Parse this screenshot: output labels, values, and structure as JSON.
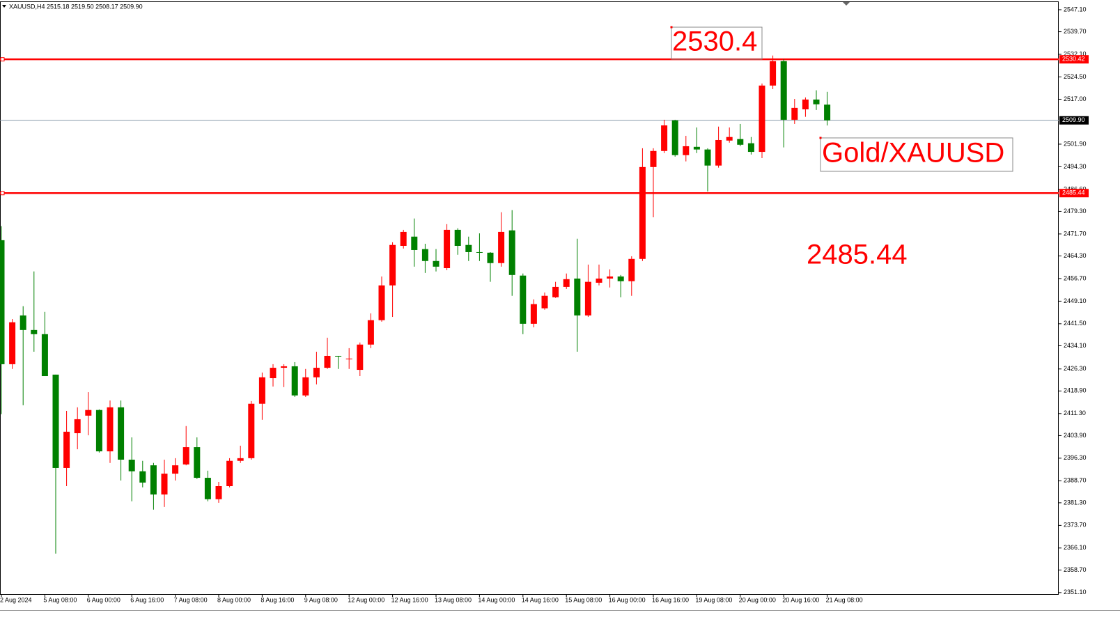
{
  "chart_data": {
    "type": "candlestick",
    "header": "XAUUSD,H4  2515.18 2519.50 2508.17 2509.90",
    "categories": [
      "2 Aug 2024",
      null,
      null,
      null,
      "5 Aug 08:00",
      null,
      null,
      null,
      "6 Aug 00:00",
      null,
      null,
      null,
      "6 Aug 16:00",
      null,
      null,
      null,
      "7 Aug 08:00",
      null,
      null,
      null,
      "8 Aug 00:00",
      null,
      null,
      null,
      "8 Aug 16:00",
      null,
      null,
      null,
      "9 Aug 08:00",
      null,
      null,
      null,
      "12 Aug 00:00",
      null,
      null,
      null,
      "12 Aug 16:00",
      null,
      null,
      null,
      "13 Aug 08:00",
      null,
      null,
      null,
      "14 Aug 00:00",
      null,
      null,
      null,
      "14 Aug 16:00",
      null,
      null,
      null,
      "15 Aug 08:00",
      null,
      null,
      null,
      "16 Aug 00:00",
      null,
      null,
      null,
      "16 Aug 16:00",
      null,
      null,
      null,
      "19 Aug 08:00",
      null,
      null,
      null,
      "20 Aug 00:00",
      null,
      null,
      null,
      "20 Aug 16:00",
      null,
      null,
      null,
      "21 Aug 08:00"
    ],
    "open": [
      2469.6,
      2427.9,
      2444.3,
      2439.4,
      2438.0,
      2424.4,
      2393.0,
      2404.7,
      2410.6,
      2412.5,
      2398.6,
      2413.4,
      2395.8,
      2391.9,
      2393.9,
      2384.1,
      2391.1,
      2394.2,
      2400.0,
      2389.7,
      2382.5,
      2386.9,
      2395.4,
      2396.3,
      2414.6,
      2423.2,
      2426.7,
      2427.2,
      2417.4,
      2423.5,
      2426.7,
      2430.7,
      2429.6,
      2426.0,
      2434.5,
      2442.7,
      2454.4,
      2467.7,
      2470.8,
      2466.6,
      2462.6,
      2460.2,
      2473.1,
      2468.0,
      2465.6,
      2465.4,
      2461.9,
      2472.9,
      2457.7,
      2441.5,
      2446.7,
      2450.4,
      2453.9,
      2456.7,
      2444.3,
      2455.3,
      2456.7,
      2457.4,
      2455.8,
      2463.3,
      2494.2,
      2499.6,
      2509.9,
      2498.2,
      2501.0,
      2500.1,
      2494.7,
      2503.1,
      2503.6,
      2502.2,
      2499.3,
      2521.6,
      2529.8,
      2510.1,
      2513.6,
      2516.9,
      2515.18
    ],
    "high": [
      2474.3,
      2443.1,
      2447.4,
      2459.1,
      2445.5,
      2424.4,
      2412.2,
      2413.4,
      2418.5,
      2412.7,
      2415.7,
      2415.7,
      2403.3,
      2395.4,
      2394.7,
      2395.8,
      2396.3,
      2407.1,
      2403.3,
      2392.1,
      2388.3,
      2396.3,
      2400.5,
      2415.5,
      2425.1,
      2427.9,
      2427.9,
      2428.6,
      2426.3,
      2432.1,
      2436.8,
      2430.7,
      2433.3,
      2435.2,
      2445.0,
      2457.4,
      2468.9,
      2473.1,
      2476.9,
      2468.4,
      2466.6,
      2475.0,
      2473.6,
      2470.8,
      2471.9,
      2465.6,
      2479.0,
      2479.7,
      2458.4,
      2449.7,
      2452.0,
      2455.6,
      2458.4,
      2470.1,
      2461.4,
      2461.4,
      2459.8,
      2457.9,
      2464.2,
      2500.5,
      2500.5,
      2510.1,
      2510.1,
      2504.7,
      2507.5,
      2500.5,
      2507.8,
      2507.5,
      2508.7,
      2504.3,
      2522.3,
      2531.7,
      2530.5,
      2517.1,
      2517.6,
      2520.0,
      2519.5
    ],
    "low": [
      2411.1,
      2426.3,
      2414.1,
      2432.1,
      2423.9,
      2364.2,
      2386.9,
      2399.3,
      2404.0,
      2398.2,
      2394.7,
      2388.8,
      2381.8,
      2386.5,
      2379.0,
      2379.9,
      2388.8,
      2393.9,
      2389.3,
      2381.8,
      2381.3,
      2386.5,
      2394.7,
      2395.8,
      2409.2,
      2420.4,
      2420.2,
      2416.9,
      2416.9,
      2421.1,
      2426.3,
      2426.3,
      2426.3,
      2423.9,
      2433.3,
      2442.2,
      2443.8,
      2466.8,
      2460.7,
      2458.6,
      2459.1,
      2459.5,
      2464.7,
      2462.6,
      2462.6,
      2455.6,
      2460.7,
      2450.9,
      2438.0,
      2440.3,
      2446.2,
      2450.2,
      2453.2,
      2432.1,
      2443.8,
      2454.4,
      2453.7,
      2450.4,
      2450.9,
      2462.6,
      2477.3,
      2498.9,
      2497.7,
      2496.1,
      2498.9,
      2486.0,
      2494.0,
      2502.4,
      2501.2,
      2498.4,
      2497.2,
      2520.4,
      2500.8,
      2508.7,
      2511.1,
      2513.4,
      2508.17
    ],
    "close": [
      2427.9,
      2442.0,
      2439.4,
      2438.0,
      2423.9,
      2393.0,
      2405.2,
      2409.4,
      2412.5,
      2398.6,
      2413.4,
      2395.8,
      2391.9,
      2388.1,
      2384.1,
      2391.1,
      2393.9,
      2400.0,
      2389.7,
      2382.5,
      2386.9,
      2395.4,
      2396.3,
      2414.6,
      2423.5,
      2426.7,
      2427.2,
      2417.4,
      2423.5,
      2426.7,
      2430.7,
      2430.5,
      2429.8,
      2434.5,
      2442.7,
      2454.4,
      2468.0,
      2472.4,
      2466.3,
      2462.6,
      2460.7,
      2473.1,
      2467.7,
      2465.6,
      2465.4,
      2461.9,
      2472.4,
      2457.9,
      2441.5,
      2448.1,
      2450.9,
      2453.9,
      2456.5,
      2444.3,
      2455.6,
      2456.7,
      2457.4,
      2455.8,
      2463.3,
      2494.2,
      2499.6,
      2508.2,
      2498.2,
      2501.2,
      2500.1,
      2494.7,
      2503.3,
      2504.3,
      2501.7,
      2499.3,
      2521.6,
      2529.8,
      2510.1,
      2514.1,
      2516.9,
      2515.3,
      2509.9
    ],
    "up_color": "#ff0000",
    "down_color": "#008000",
    "ylim": [
      2350.6,
      2549.9
    ],
    "yticks": [
      {
        "value": 2547.1,
        "label": "2547.10"
      },
      {
        "value": 2539.7,
        "label": "2539.70"
      },
      {
        "value": 2532.1,
        "label": "2532.10"
      },
      {
        "value": 2524.5,
        "label": "2524.50"
      },
      {
        "value": 2517,
        "label": "2517.00"
      },
      {
        "value": 2501.9,
        "label": "2501.90"
      },
      {
        "value": 2494.3,
        "label": "2494.30"
      },
      {
        "value": 2486.6,
        "label": "2486.60"
      },
      {
        "value": 2479.3,
        "label": "2479.30"
      },
      {
        "value": 2471.7,
        "label": "2471.70"
      },
      {
        "value": 2464.3,
        "label": "2464.30"
      },
      {
        "value": 2456.7,
        "label": "2456.70"
      },
      {
        "value": 2449.1,
        "label": "2449.10"
      },
      {
        "value": 2441.5,
        "label": "2441.50"
      },
      {
        "value": 2434.1,
        "label": "2434.10"
      },
      {
        "value": 2426.3,
        "label": "2426.30"
      },
      {
        "value": 2418.9,
        "label": "2418.90"
      },
      {
        "value": 2411.3,
        "label": "2411.30"
      },
      {
        "value": 2403.9,
        "label": "2403.90"
      },
      {
        "value": 2396.3,
        "label": "2396.30"
      },
      {
        "value": 2388.7,
        "label": "2388.70"
      },
      {
        "value": 2381.3,
        "label": "2381.30"
      },
      {
        "value": 2373.7,
        "label": "2373.70"
      },
      {
        "value": 2366.1,
        "label": "2366.10"
      },
      {
        "value": 2358.7,
        "label": "2358.70"
      },
      {
        "value": 2351.1,
        "label": "2351.10"
      }
    ],
    "hlines": [
      {
        "value": 2530.42,
        "label": "2530.42",
        "color": "#ff0000"
      },
      {
        "value": 2485.44,
        "label": "2485.44",
        "color": "#ff0000"
      }
    ],
    "current_price": {
      "value": 2509.9,
      "label": "2509.90",
      "color": "#8899aa"
    },
    "annotations": [
      "2530.4",
      "Gold/XAUUSD",
      "2485.44"
    ],
    "annotation_color": "#ff0000"
  }
}
